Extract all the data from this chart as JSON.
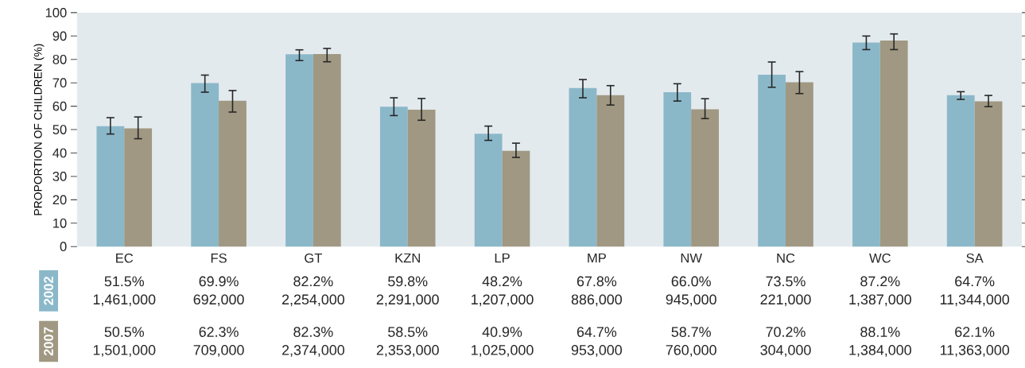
{
  "chart_data": {
    "type": "bar",
    "ylabel": "PROPORTION OF CHILDREN (%)",
    "categories": [
      "EC",
      "FS",
      "GT",
      "KZN",
      "LP",
      "MP",
      "NW",
      "NC",
      "WC",
      "SA"
    ],
    "series": [
      {
        "name": "2002",
        "color": "#8bb8c9",
        "values": [
          51.5,
          69.9,
          82.2,
          59.8,
          48.2,
          67.8,
          66.0,
          73.5,
          87.2,
          64.7
        ],
        "errors": [
          [
            48.1,
            55.1
          ],
          [
            66.0,
            73.3
          ],
          [
            79.5,
            84.1
          ],
          [
            56.0,
            63.6
          ],
          [
            45.4,
            51.5
          ],
          [
            63.6,
            71.4
          ],
          [
            62.2,
            69.6
          ],
          [
            68.1,
            78.9
          ],
          [
            84.2,
            90.0
          ],
          [
            62.9,
            66.2
          ]
        ],
        "value_labels": [
          "51.5%",
          "69.9%",
          "82.2%",
          "59.8%",
          "48.2%",
          "67.8%",
          "66.0%",
          "73.5%",
          "87.2%",
          "64.7%"
        ]
      },
      {
        "name": "2007",
        "color": "#a09882",
        "values": [
          50.5,
          62.3,
          82.3,
          58.5,
          40.9,
          64.7,
          58.7,
          70.2,
          88.1,
          62.1
        ],
        "errors": [
          [
            46.1,
            55.4
          ],
          [
            57.5,
            66.7
          ],
          [
            79.0,
            84.7
          ],
          [
            54.0,
            63.3
          ],
          [
            38.1,
            44.2
          ],
          [
            60.5,
            68.8
          ],
          [
            54.7,
            63.2
          ],
          [
            65.4,
            74.8
          ],
          [
            84.2,
            90.9
          ],
          [
            59.8,
            64.6
          ]
        ],
        "value_labels": [
          "50.5%",
          "62.3%",
          "82.3%",
          "58.5%",
          "40.9%",
          "64.7%",
          "58.7%",
          "70.2%",
          "88.1%",
          "62.1%"
        ]
      }
    ],
    "annotations": [
      "1,461,000",
      "692,000",
      "2,254,000",
      "2,291,000",
      "1,207,000",
      "886,000",
      "945,000",
      "221,000",
      "1,387,000",
      "11,344,000",
      "1,501,000",
      "709,000",
      "2,374,000",
      "2,353,000",
      "1,025,000",
      "953,000",
      "760,000",
      "304,000",
      "1,384,000",
      "11,363,000"
    ],
    "ylim": [
      0,
      100
    ],
    "yticks": [
      0,
      10,
      20,
      30,
      40,
      50,
      60,
      70,
      80,
      90,
      100
    ],
    "grid": false,
    "legend": "bottom left"
  }
}
